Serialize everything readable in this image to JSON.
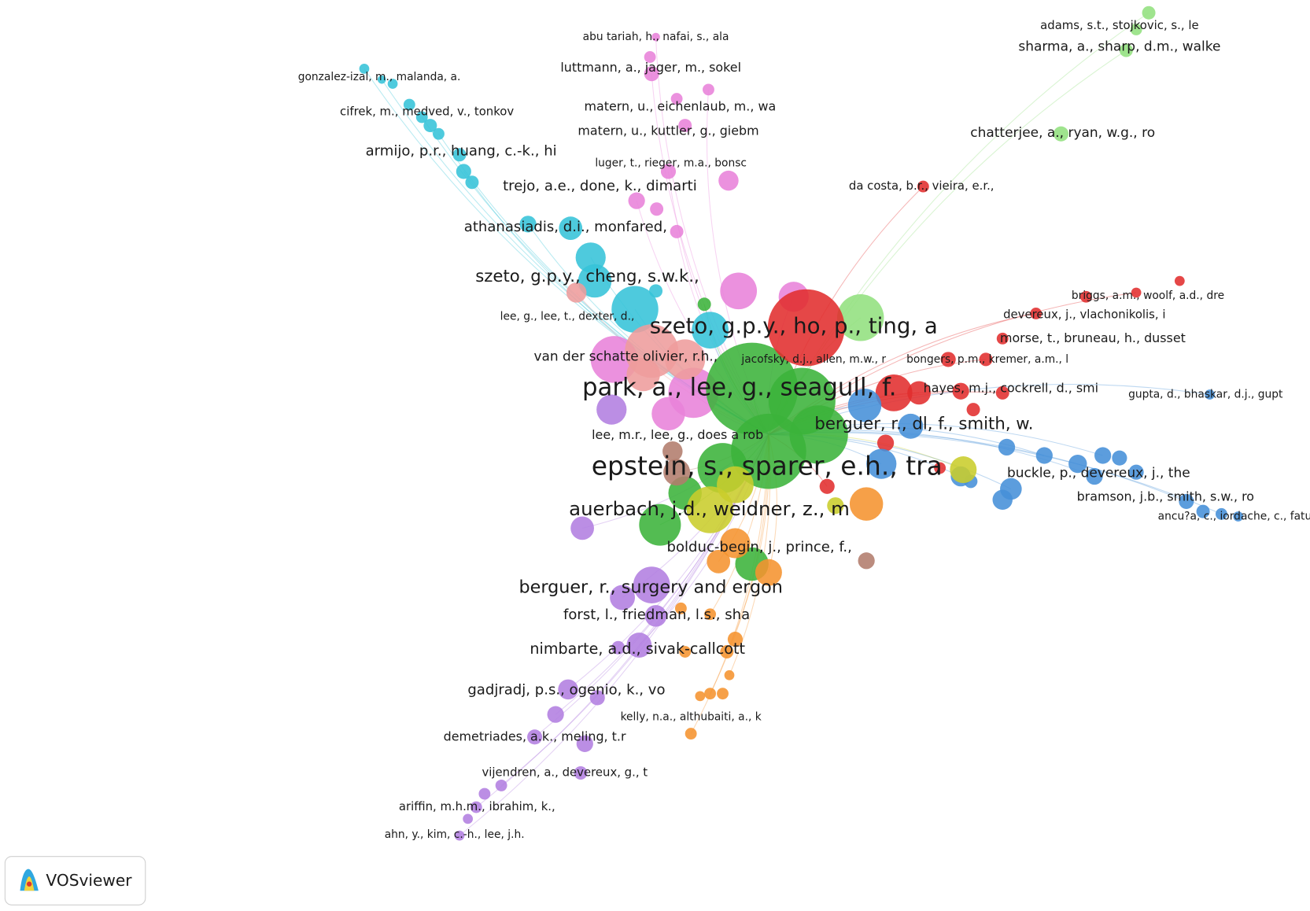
{
  "nodes": [
    "abu tariah, h., nafai, s., ala",
    "luttmann, a., jager, m., sokel",
    "gonzalez-izal, m., malanda, a.",
    "cifrek, m., medved, v., tonkov",
    "matern, u., eichenlaub, m., wa",
    "matern, u., kuttler, g., giebm",
    "armijo, p.r., huang, c.-k., hi",
    "luger, t., rieger, m.a., bonsc",
    "trejo, a.e., done, k., dimarti",
    "athanasiadis, d.i., monfared,",
    "szeto, g.p.y., cheng, s.w.k.,",
    "lee, g., lee, t., dexter, d.,",
    "szeto, g.p.y., ho, p., ting, a",
    "van der schatte olivier, r.h.,",
    "jacofsky, d.j., allen, m.w., r",
    "park, a., lee, g., seagull, f.",
    "lee, m.r., lee, g., does a rob",
    "epstein, s., sparer, e.h., tra",
    "berguer, r., dl, f., smith, w.",
    "auerbach, j.d., weidner, z., m",
    "bolduc-begin, j., prince, f.,",
    "berguer, r., surgery and ergon",
    "forst, l., friedman, l.s., sha",
    "nimbarte, a.d., sivak-callcott",
    "gadjradj, p.s., ogenio, k., vo",
    "kelly, n.a., althubaiti, a., k",
    "demetriades, a.k., meling, t.r",
    "vijendren, a., devereux, g., t",
    "ariffin, m.h.m., ibrahim, k.,",
    "ahn, y., kim, c.-h., lee, j.h.",
    "adams, s.t., stojkovic, s., le",
    "sharma, a., sharp, d.m., walke",
    "chatterjee, a., ryan, w.g., ro",
    "da costa, b.r., vieira, e.r.,",
    "briggs, a.m., woolf, a.d., dre",
    "devereux, j., vlachonikolis, i",
    "morse, t., bruneau, h., dusset",
    "bongers, p.m., kremer, a.m., l",
    "hayes, m.j., cockrell, d., smi",
    "gupta, d., bhaskar, d.j., gupt",
    "buckle, p., devereux, j., the",
    "bramson, j.b., smith, s.w., ro",
    "ancu?a, c., iordache, c., fatu"
  ],
  "logo": "VOSviewer"
}
